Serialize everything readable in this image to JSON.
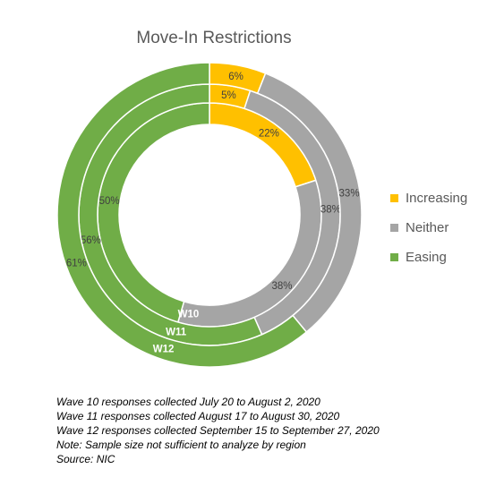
{
  "chart_data": {
    "type": "donut",
    "title": "Move-In Restrictions",
    "categories": [
      "Increasing",
      "Neither",
      "Easing"
    ],
    "colors": [
      "#FFC000",
      "#A5A5A5",
      "#70AD47"
    ],
    "rings": [
      {
        "name": "W10",
        "values": [
          22,
          38,
          50
        ],
        "labels": [
          "22%",
          "38%",
          "50%"
        ]
      },
      {
        "name": "W11",
        "values": [
          5,
          38,
          56
        ],
        "labels": [
          "5%",
          "38%",
          "56%"
        ]
      },
      {
        "name": "W12",
        "values": [
          6,
          33,
          61
        ],
        "labels": [
          "6%",
          "33%",
          "61%"
        ]
      }
    ],
    "legend_position": "right"
  },
  "notes": [
    "Wave 10 responses collected July 20 to August 2, 2020",
    "Wave 11 responses collected August 17 to August 30, 2020",
    "Wave 12 responses collected September 15 to September 27, 2020",
    "Note: Sample size not sufficient to analyze by region",
    "Source: NIC"
  ]
}
